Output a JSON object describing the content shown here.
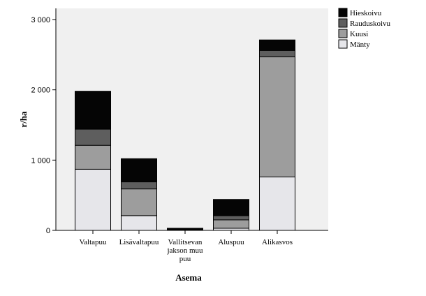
{
  "chart_data": {
    "type": "bar",
    "stacked": true,
    "categories": [
      "Valtapuu",
      "Lisävaltapuu",
      "Vallitsevan jakson muu puu",
      "Aluspuu",
      "Alikasvos"
    ],
    "category_lines": [
      [
        "Valtapuu"
      ],
      [
        "Lisävaltapuu"
      ],
      [
        "Vallitsevan",
        "jakson muu",
        "puu"
      ],
      [
        "Aluspuu"
      ],
      [
        "Alikasvos"
      ]
    ],
    "series": [
      {
        "name": "Mänty",
        "color": "#e6e6ea",
        "values": [
          870,
          210,
          0,
          30,
          760
        ]
      },
      {
        "name": "Kuusi",
        "color": "#9d9d9d",
        "values": [
          340,
          380,
          0,
          120,
          1710
        ]
      },
      {
        "name": "Rauduskoivu",
        "color": "#5e5e5e",
        "values": [
          230,
          100,
          10,
          60,
          90
        ]
      },
      {
        "name": "Hieskoivu",
        "color": "#050505",
        "values": [
          540,
          330,
          20,
          230,
          150
        ]
      }
    ],
    "legend_order": [
      "Hieskoivu",
      "Rauduskoivu",
      "Kuusi",
      "Mänty"
    ],
    "title": "",
    "xlabel": "Asema",
    "ylabel": "r/ha",
    "ylim": [
      0,
      3000
    ],
    "yticks": [
      0,
      1000,
      2000,
      3000
    ],
    "ytick_labels": [
      "0",
      "1 000",
      "2 000",
      "3 000"
    ],
    "grid": false,
    "legend_position": "top-right",
    "plot_background": "#f0f0f0"
  }
}
